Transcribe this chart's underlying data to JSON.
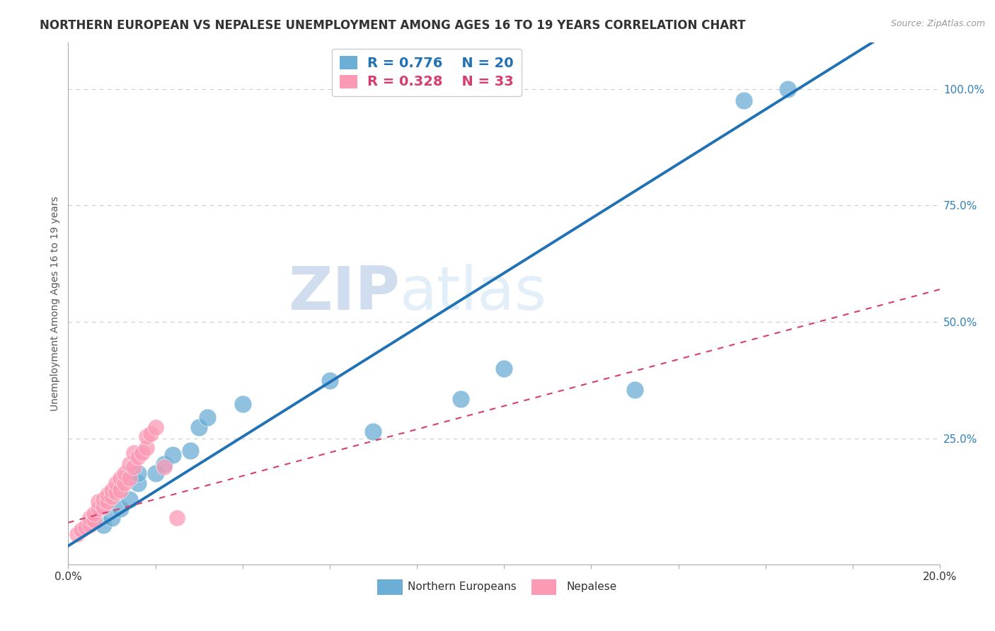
{
  "title": "NORTHERN EUROPEAN VS NEPALESE UNEMPLOYMENT AMONG AGES 16 TO 19 YEARS CORRELATION CHART",
  "source": "Source: ZipAtlas.com",
  "ylabel": "Unemployment Among Ages 16 to 19 years",
  "xlim": [
    0.0,
    0.2
  ],
  "ylim": [
    -0.02,
    1.1
  ],
  "yticks": [
    0.25,
    0.5,
    0.75,
    1.0
  ],
  "ytick_labels": [
    "25.0%",
    "50.0%",
    "75.0%",
    "100.0%"
  ],
  "xticks": [
    0.0,
    0.02,
    0.04,
    0.06,
    0.08,
    0.1,
    0.12,
    0.14,
    0.16,
    0.18,
    0.2
  ],
  "xtick_labels": [
    "0.0%",
    "",
    "",
    "",
    "",
    "",
    "",
    "",
    "",
    "",
    "20.0%"
  ],
  "blue_R": "0.776",
  "blue_N": "20",
  "pink_R": "0.328",
  "pink_N": "33",
  "blue_color": "#6baed6",
  "pink_color": "#fc9ab6",
  "blue_line_color": "#2171b5",
  "pink_line_color": "#d63e6e",
  "blue_scatter_x": [
    0.008,
    0.01,
    0.012,
    0.014,
    0.016,
    0.016,
    0.02,
    0.022,
    0.024,
    0.028,
    0.03,
    0.032,
    0.04,
    0.06,
    0.07,
    0.09,
    0.1,
    0.13,
    0.155,
    0.165
  ],
  "blue_scatter_y": [
    0.065,
    0.08,
    0.1,
    0.12,
    0.155,
    0.175,
    0.175,
    0.195,
    0.215,
    0.225,
    0.275,
    0.295,
    0.325,
    0.375,
    0.265,
    0.335,
    0.4,
    0.355,
    0.975,
    1.0
  ],
  "pink_scatter_x": [
    0.002,
    0.003,
    0.004,
    0.005,
    0.005,
    0.006,
    0.006,
    0.007,
    0.007,
    0.008,
    0.008,
    0.009,
    0.009,
    0.01,
    0.01,
    0.011,
    0.011,
    0.012,
    0.012,
    0.013,
    0.013,
    0.014,
    0.014,
    0.015,
    0.015,
    0.016,
    0.017,
    0.018,
    0.018,
    0.019,
    0.02,
    0.022,
    0.025
  ],
  "pink_scatter_y": [
    0.045,
    0.055,
    0.06,
    0.065,
    0.08,
    0.075,
    0.09,
    0.1,
    0.115,
    0.105,
    0.12,
    0.115,
    0.13,
    0.125,
    0.14,
    0.135,
    0.155,
    0.14,
    0.165,
    0.155,
    0.175,
    0.165,
    0.195,
    0.19,
    0.22,
    0.21,
    0.22,
    0.23,
    0.255,
    0.26,
    0.275,
    0.19,
    0.08
  ],
  "watermark_zip": "ZIP",
  "watermark_atlas": "atlas",
  "background_color": "#ffffff",
  "grid_color": "#cccccc",
  "title_fontsize": 12,
  "axis_label_fontsize": 10,
  "tick_fontsize": 11,
  "legend_fontsize": 13,
  "blue_line_slope": 5.85,
  "blue_line_intercept": 0.02,
  "pink_line_slope": 2.5,
  "pink_line_intercept": 0.07
}
